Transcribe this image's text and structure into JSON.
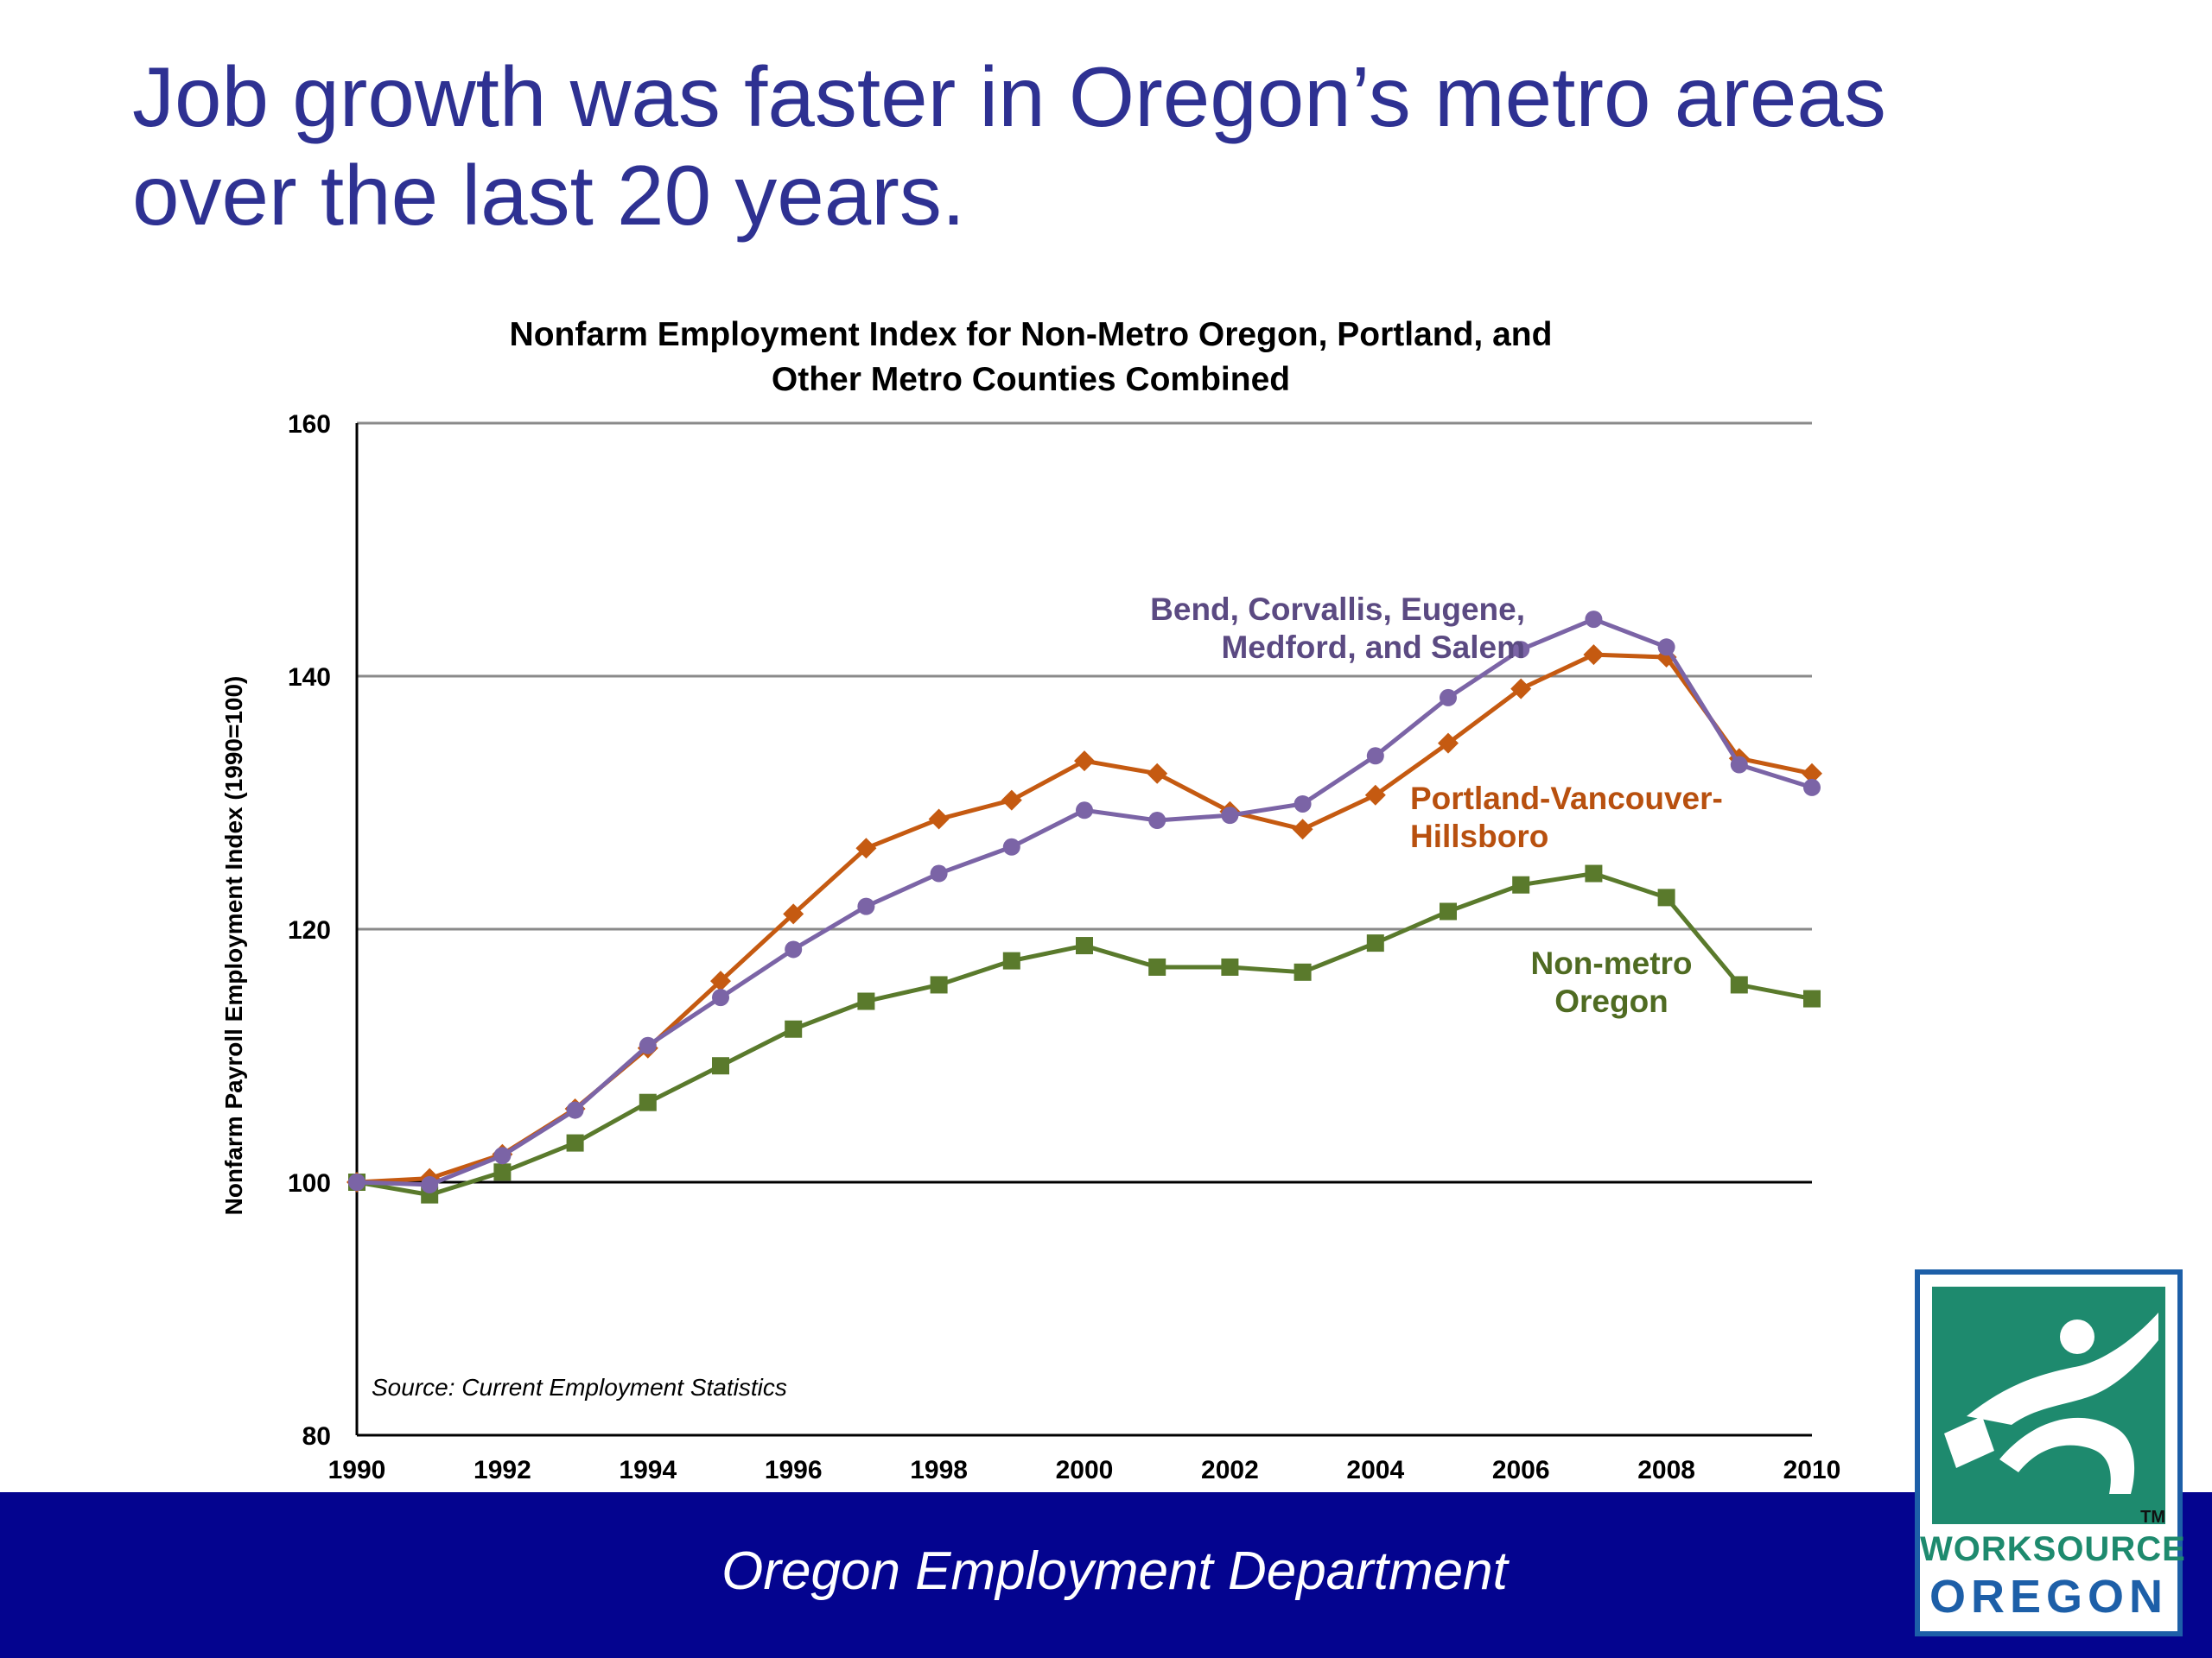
{
  "slide": {
    "title_line1": "Job growth was faster in Oregon’s metro areas",
    "title_line2": "over the last 20 years.",
    "footer": "Oregon Employment Department",
    "logo": {
      "line1": "WORKSOURCE",
      "line2": "OREGON",
      "tm": "TM"
    }
  },
  "chart_data": {
    "type": "line",
    "title_line1": "Nonfarm Employment Index for Non-Metro Oregon, Portland, and",
    "title_line2": "Other Metro Counties Combined",
    "xlabel": "",
    "ylabel": "Nonfarm Payroll Employment Index (1990=100)",
    "ylim": [
      80,
      160
    ],
    "yticks": [
      80,
      100,
      120,
      140,
      160
    ],
    "xlim": [
      1990,
      2010
    ],
    "xticks": [
      1990,
      1992,
      1994,
      1996,
      1998,
      2000,
      2002,
      2004,
      2006,
      2008,
      2010
    ],
    "grid": "horizontal",
    "reference_line": 100,
    "x": [
      1990,
      1991,
      1992,
      1993,
      1994,
      1995,
      1996,
      1997,
      1998,
      1999,
      2000,
      2001,
      2002,
      2003,
      2004,
      2005,
      2006,
      2007,
      2008,
      2009,
      2010
    ],
    "source_note": "Source: Current Employment Statistics",
    "series": [
      {
        "name_lines": [
          "Bend, Corvallis, Eugene,",
          "Medford, and Salem"
        ],
        "color": "#7b64a6",
        "label_color": "#5b4a82",
        "marker": "circle",
        "values": [
          100,
          99.8,
          102.1,
          105.7,
          110.8,
          114.6,
          118.4,
          121.8,
          124.4,
          126.5,
          129.4,
          128.6,
          129.0,
          129.9,
          133.7,
          138.3,
          142.1,
          144.5,
          142.3,
          133.0,
          131.2
        ]
      },
      {
        "name_lines": [
          "Portland-Vancouver-",
          "Hillsboro"
        ],
        "color": "#c55a11",
        "label_color": "#b8500f",
        "marker": "diamond",
        "values": [
          100,
          100.3,
          102.2,
          105.8,
          110.6,
          115.9,
          121.2,
          126.4,
          128.7,
          130.2,
          133.3,
          132.3,
          129.3,
          127.9,
          130.6,
          134.7,
          139.0,
          141.7,
          141.5,
          133.5,
          132.3
        ]
      },
      {
        "name_lines": [
          "Non-metro",
          "Oregon"
        ],
        "color": "#5a7a2c",
        "label_color": "#4f6b22",
        "marker": "square",
        "values": [
          100,
          99.0,
          100.8,
          103.1,
          106.3,
          109.2,
          112.1,
          114.3,
          115.6,
          117.5,
          118.7,
          117.0,
          117.0,
          116.6,
          118.9,
          121.4,
          123.5,
          124.4,
          122.5,
          115.6,
          114.5
        ]
      }
    ]
  }
}
